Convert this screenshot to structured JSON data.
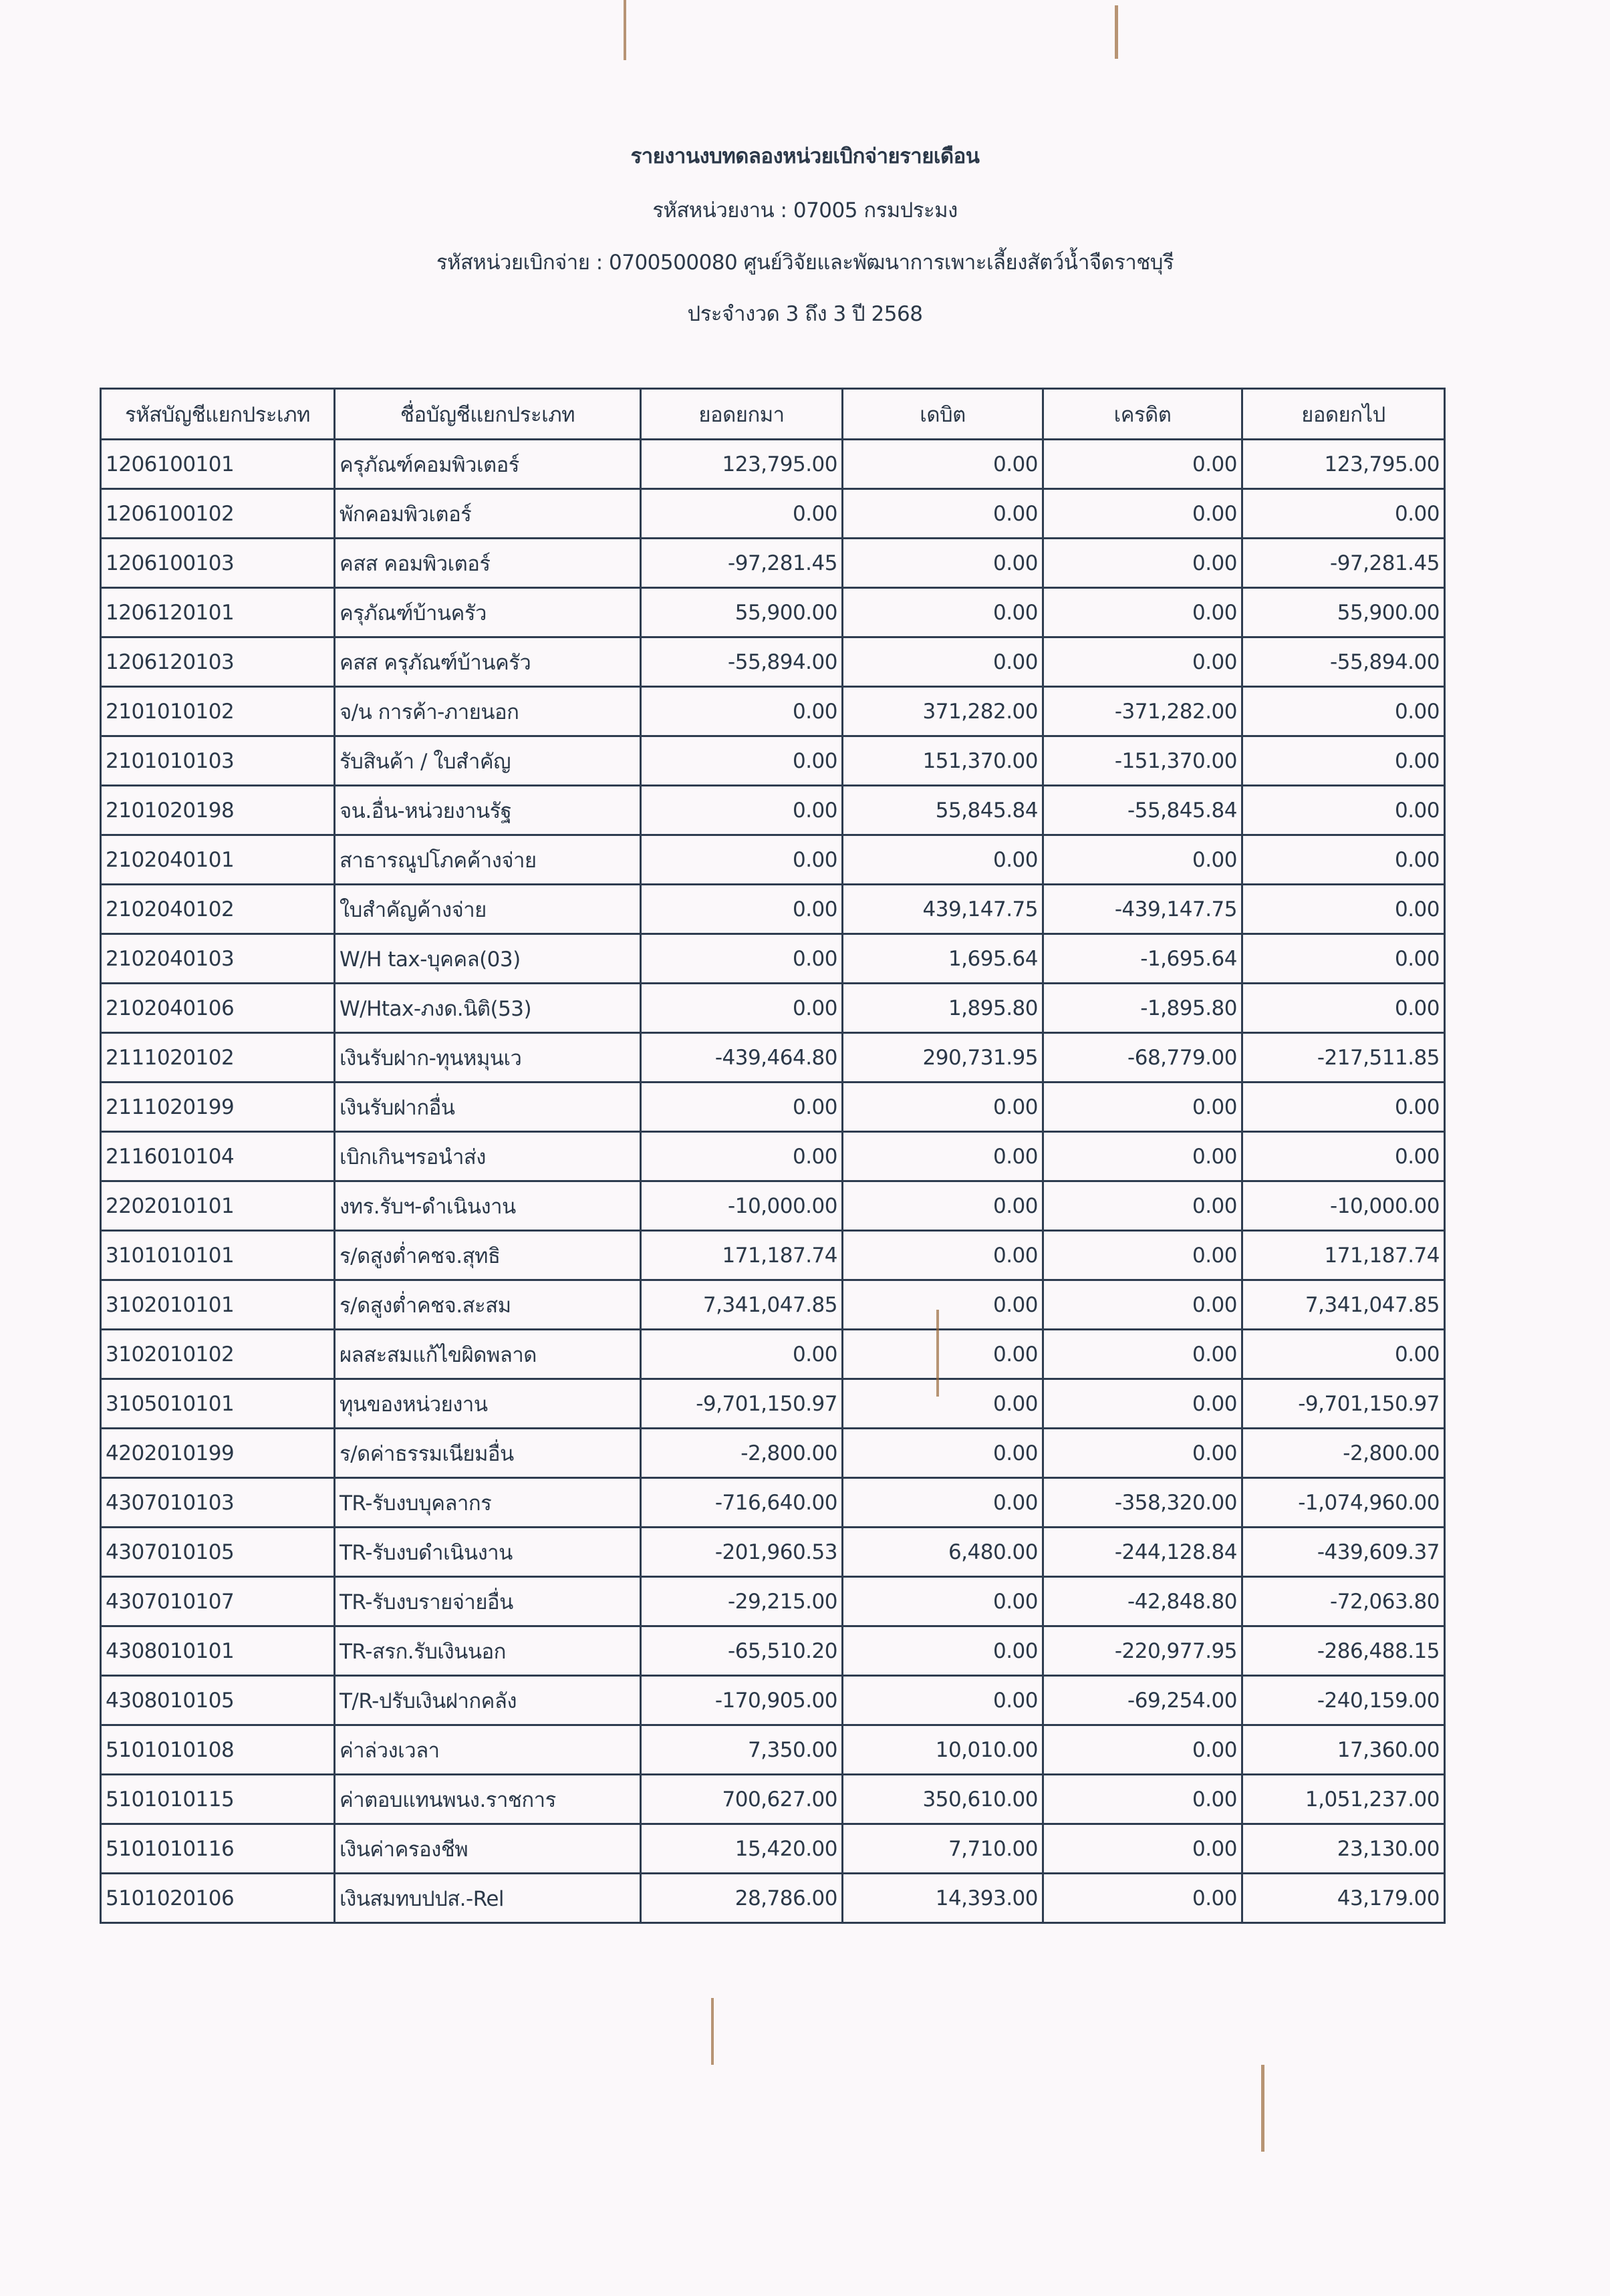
{
  "report": {
    "title": "รายงานงบทดลองหน่วยเบิกจ่ายรายเดือน",
    "agency": "รหัสหน่วยงาน : 07005 กรมประมง",
    "disbursing_unit": "รหัสหน่วยเบิกจ่าย : 0700500080 ศูนย์วิจัยและพัฒนาการเพาะเลี้ยงสัตว์น้ำจืดราชบุรี",
    "period": "ประจำงวด 3 ถึง 3 ปี 2568"
  },
  "table": {
    "columns": [
      "รหัสบัญชีแยกประเภท",
      "ชื่อบัญชีแยกประเภท",
      "ยอดยกมา",
      "เดบิต",
      "เครดิต",
      "ยอดยกไป"
    ],
    "rows": [
      [
        "1206100101",
        "ครุภัณฑ์คอมพิวเตอร์",
        "123,795.00",
        "0.00",
        "0.00",
        "123,795.00"
      ],
      [
        "1206100102",
        "พักคอมพิวเตอร์",
        "0.00",
        "0.00",
        "0.00",
        "0.00"
      ],
      [
        "1206100103",
        "คสส คอมพิวเตอร์",
        "-97,281.45",
        "0.00",
        "0.00",
        "-97,281.45"
      ],
      [
        "1206120101",
        "ครุภัณฑ์บ้านครัว",
        "55,900.00",
        "0.00",
        "0.00",
        "55,900.00"
      ],
      [
        "1206120103",
        "คสส ครุภัณฑ์บ้านครัว",
        "-55,894.00",
        "0.00",
        "0.00",
        "-55,894.00"
      ],
      [
        "2101010102",
        "จ/น การค้า-ภายนอก",
        "0.00",
        "371,282.00",
        "-371,282.00",
        "0.00"
      ],
      [
        "2101010103",
        "รับสินค้า / ใบสำคัญ",
        "0.00",
        "151,370.00",
        "-151,370.00",
        "0.00"
      ],
      [
        "2101020198",
        "จน.อื่น-หน่วยงานรัฐ",
        "0.00",
        "55,845.84",
        "-55,845.84",
        "0.00"
      ],
      [
        "2102040101",
        "สาธารณูปโภคค้างจ่าย",
        "0.00",
        "0.00",
        "0.00",
        "0.00"
      ],
      [
        "2102040102",
        "ใบสำคัญค้างจ่าย",
        "0.00",
        "439,147.75",
        "-439,147.75",
        "0.00"
      ],
      [
        "2102040103",
        "W/H tax-บุคคล(03)",
        "0.00",
        "1,695.64",
        "-1,695.64",
        "0.00"
      ],
      [
        "2102040106",
        "W/Htax-ภงด.นิติ(53)",
        "0.00",
        "1,895.80",
        "-1,895.80",
        "0.00"
      ],
      [
        "2111020102",
        "เงินรับฝาก-ทุนหมุนเว",
        "-439,464.80",
        "290,731.95",
        "-68,779.00",
        "-217,511.85"
      ],
      [
        "2111020199",
        "เงินรับฝากอื่น",
        "0.00",
        "0.00",
        "0.00",
        "0.00"
      ],
      [
        "2116010104",
        "เบิกเกินฯรอนำส่ง",
        "0.00",
        "0.00",
        "0.00",
        "0.00"
      ],
      [
        "2202010101",
        "งทร.รับฯ-ดำเนินงาน",
        "-10,000.00",
        "0.00",
        "0.00",
        "-10,000.00"
      ],
      [
        "3101010101",
        "ร/ดสูงต่ำคชจ.สุทธิ",
        "171,187.74",
        "0.00",
        "0.00",
        "171,187.74"
      ],
      [
        "3102010101",
        "ร/ดสูงต่ำคชจ.สะสม",
        "7,341,047.85",
        "0.00",
        "0.00",
        "7,341,047.85"
      ],
      [
        "3102010102",
        "ผลสะสมแก้ไขผิดพลาด",
        "0.00",
        "0.00",
        "0.00",
        "0.00"
      ],
      [
        "3105010101",
        "ทุนของหน่วยงาน",
        "-9,701,150.97",
        "0.00",
        "0.00",
        "-9,701,150.97"
      ],
      [
        "4202010199",
        "ร/ดค่าธรรมเนียมอื่น",
        "-2,800.00",
        "0.00",
        "0.00",
        "-2,800.00"
      ],
      [
        "4307010103",
        "TR-รับงบบุคลากร",
        "-716,640.00",
        "0.00",
        "-358,320.00",
        "-1,074,960.00"
      ],
      [
        "4307010105",
        "TR-รับงบดำเนินงาน",
        "-201,960.53",
        "6,480.00",
        "-244,128.84",
        "-439,609.37"
      ],
      [
        "4307010107",
        "TR-รับงบรายจ่ายอื่น",
        "-29,215.00",
        "0.00",
        "-42,848.80",
        "-72,063.80"
      ],
      [
        "4308010101",
        "TR-สรก.รับเงินนอก",
        "-65,510.20",
        "0.00",
        "-220,977.95",
        "-286,488.15"
      ],
      [
        "4308010105",
        "T/R-ปรับเงินฝากคลัง",
        "-170,905.00",
        "0.00",
        "-69,254.00",
        "-240,159.00"
      ],
      [
        "5101010108",
        "ค่าล่วงเวลา",
        "7,350.00",
        "10,010.00",
        "0.00",
        "17,360.00"
      ],
      [
        "5101010115",
        "ค่าตอบแทนพนง.ราชการ",
        "700,627.00",
        "350,610.00",
        "0.00",
        "1,051,237.00"
      ],
      [
        "5101010116",
        "เงินค่าครองชีพ",
        "15,420.00",
        "7,710.00",
        "0.00",
        "23,130.00"
      ],
      [
        "5101020106",
        "เงินสมทบปปส.-Rel",
        "28,786.00",
        "14,393.00",
        "0.00",
        "43,179.00"
      ]
    ]
  }
}
